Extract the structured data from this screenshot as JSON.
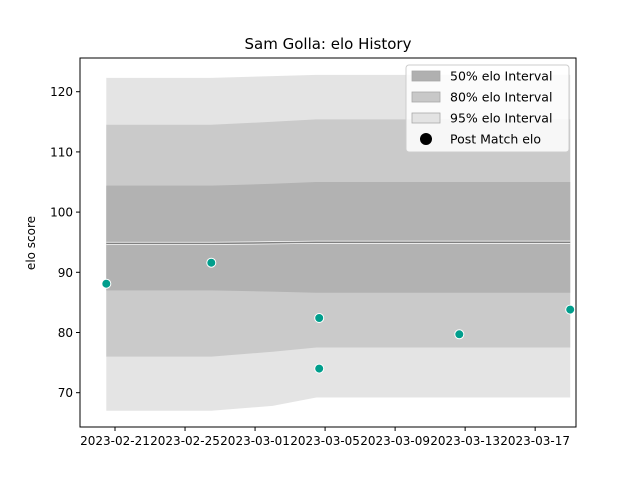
{
  "chart_data": {
    "type": "area",
    "title": "Sam Golla: elo History",
    "xlabel": "",
    "ylabel": "elo score",
    "xlim": [
      "2023-02-19T00:00",
      "2023-03-19T08:00"
    ],
    "ylim": [
      64.3,
      125.6
    ],
    "x_ticks": [
      "2023-02-21",
      "2023-02-25",
      "2023-03-01",
      "2023-03-05",
      "2023-03-09",
      "2023-03-13",
      "2023-03-17"
    ],
    "y_ticks": [
      70,
      80,
      90,
      100,
      110,
      120
    ],
    "grid": false,
    "legend_position": "top-right",
    "colors": {
      "band_50": "#b0b0b0",
      "band_80": "#c8c8c8",
      "band_95": "#e3e3e3",
      "points": "#009e8c",
      "median_line": "#808080"
    },
    "band_x": [
      "2023-02-20T12:00",
      "2023-02-26T12:00",
      "2023-03-02T00:00",
      "2023-03-04T12:00",
      "2023-03-19T00:00"
    ],
    "median": [
      94.8,
      94.8,
      94.9,
      95.0,
      95.0
    ],
    "bands": [
      {
        "name": "95% elo Interval",
        "upper": [
          122.3,
          122.3,
          122.6,
          122.8,
          122.8
        ],
        "lower": [
          67.0,
          67.0,
          67.8,
          69.2,
          69.2
        ]
      },
      {
        "name": "80% elo Interval",
        "upper": [
          114.5,
          114.5,
          115.0,
          115.4,
          115.4
        ],
        "lower": [
          76.0,
          76.0,
          76.8,
          77.5,
          77.5
        ]
      },
      {
        "name": "50% elo Interval",
        "upper": [
          104.4,
          104.4,
          104.7,
          105.0,
          105.0
        ],
        "lower": [
          87.0,
          87.0,
          86.8,
          86.6,
          86.6
        ]
      }
    ],
    "series": [
      {
        "name": "Post Match elo",
        "points": [
          {
            "x": "2023-02-20T12:00",
            "y": 88.1
          },
          {
            "x": "2023-02-26T12:00",
            "y": 91.6
          },
          {
            "x": "2023-03-04T16:00",
            "y": 82.4
          },
          {
            "x": "2023-03-04T16:00",
            "y": 74.0
          },
          {
            "x": "2023-03-12T16:00",
            "y": 79.7
          },
          {
            "x": "2023-03-19T00:00",
            "y": 83.8
          }
        ]
      }
    ],
    "legend": [
      "50% elo Interval",
      "80% elo Interval",
      "95% elo Interval",
      "Post Match elo"
    ]
  }
}
